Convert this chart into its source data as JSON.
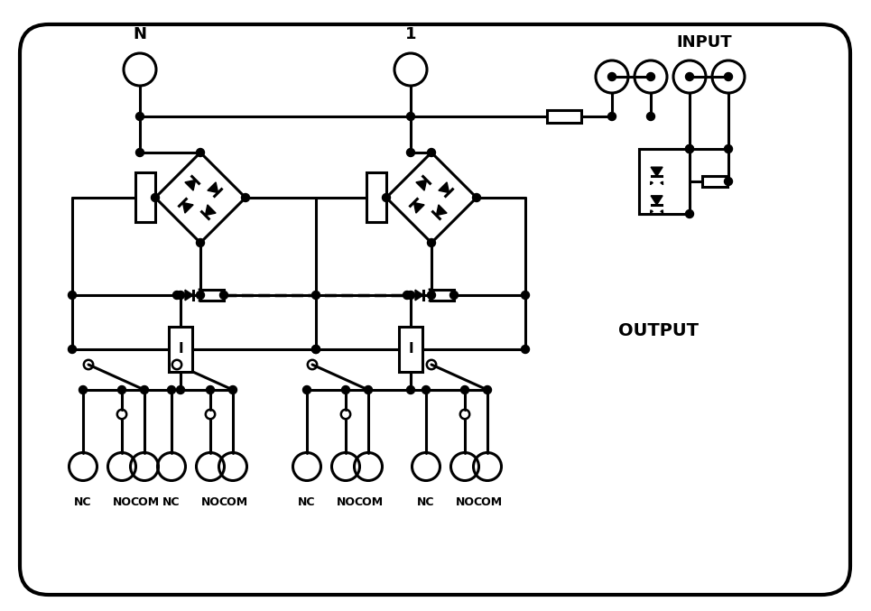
{
  "bg_color": "#ffffff",
  "line_color": "#000000",
  "line_width": 2.2,
  "label_N": "N",
  "label_1": "1",
  "label_INPUT": "INPUT",
  "label_OUTPUT": "OUTPUT",
  "output_labels": [
    "NC",
    "NO",
    "COM",
    "NC",
    "NO",
    "COM",
    "NC",
    "NO",
    "COM",
    "NC",
    "NO",
    "COM"
  ],
  "figw": 9.65,
  "figh": 6.77
}
